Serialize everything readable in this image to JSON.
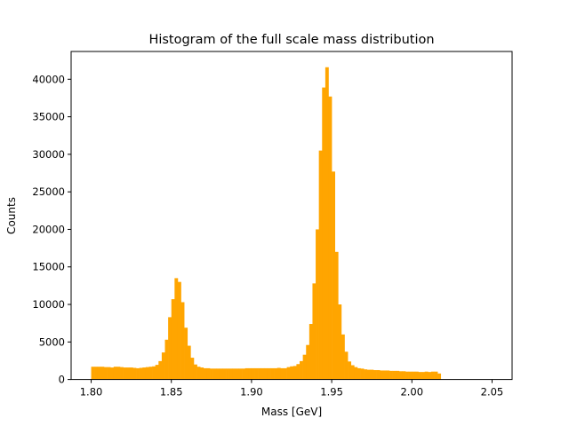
{
  "chart_data": {
    "type": "bar",
    "title": "Histogram of the full scale mass distribution",
    "xlabel": "Mass [GeV]",
    "ylabel": "Counts",
    "xlim": [
      1.7875,
      2.0625
    ],
    "ylim": [
      0,
      43700
    ],
    "xticks": [
      1.8,
      1.85,
      1.9,
      1.95,
      2.0,
      2.05
    ],
    "xtick_labels": [
      "1.80",
      "1.85",
      "1.90",
      "1.95",
      "2.00",
      "2.05"
    ],
    "yticks": [
      0,
      5000,
      10000,
      15000,
      20000,
      25000,
      30000,
      35000,
      40000
    ],
    "ytick_labels": [
      "0",
      "5000",
      "10000",
      "15000",
      "20000",
      "25000",
      "30000",
      "35000",
      "40000"
    ],
    "bar_color": "#ffa500",
    "bin_start": 1.8,
    "bin_width": 0.002,
    "counts": [
      1700,
      1700,
      1700,
      1700,
      1650,
      1650,
      1600,
      1700,
      1700,
      1650,
      1600,
      1600,
      1600,
      1550,
      1500,
      1550,
      1600,
      1650,
      1700,
      1750,
      1950,
      2450,
      3600,
      5300,
      8300,
      10700,
      13500,
      13000,
      10300,
      6900,
      4500,
      2900,
      2000,
      1700,
      1600,
      1500,
      1500,
      1450,
      1450,
      1450,
      1450,
      1450,
      1450,
      1450,
      1450,
      1450,
      1450,
      1450,
      1500,
      1500,
      1500,
      1500,
      1500,
      1500,
      1500,
      1500,
      1500,
      1500,
      1550,
      1500,
      1500,
      1650,
      1750,
      1800,
      2050,
      2450,
      3300,
      4600,
      7400,
      12800,
      20000,
      30500,
      38900,
      41600,
      37700,
      27700,
      17000,
      10000,
      6000,
      3700,
      2400,
      1900,
      1650,
      1500,
      1450,
      1350,
      1300,
      1300,
      1250,
      1250,
      1200,
      1200,
      1200,
      1150,
      1150,
      1150,
      1100,
      1100,
      1050,
      1050,
      1050,
      1050,
      1000,
      1000,
      1050,
      1000,
      1050,
      1050,
      800
    ]
  }
}
